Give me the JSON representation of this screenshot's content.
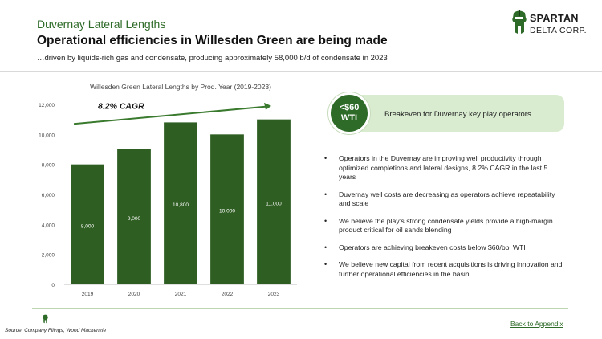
{
  "header": {
    "kicker": "Duvernay Lateral Lengths",
    "title": "Operational efficiencies in Willesden Green are being made",
    "subtitle": "…driven by liquids-rich gas and condensate, producing approximately 58,000 b/d of condensate in 2023"
  },
  "logo": {
    "line1": "SPARTAN",
    "line2": "DELTA CORP."
  },
  "chart_data": {
    "type": "bar",
    "title": "Willesden Green Lateral Lengths by Prod. Year (2019-2023)",
    "categories": [
      "2019",
      "2020",
      "2021",
      "2022",
      "2023"
    ],
    "values": [
      8000,
      9000,
      10800,
      10000,
      11000
    ],
    "data_labels": [
      "8,000",
      "9,000",
      "10,800",
      "10,000",
      "11,000"
    ],
    "ylim": [
      0,
      12000
    ],
    "yticks": [
      0,
      2000,
      4000,
      6000,
      8000,
      10000,
      12000
    ],
    "ytick_labels": [
      "0",
      "2,000",
      "4,000",
      "6,000",
      "8,000",
      "10,000",
      "12,000"
    ],
    "xlabel": "",
    "ylabel": "",
    "grid": false,
    "annotation": "8.2% CAGR",
    "bar_color": "#2e5e22",
    "arrow_color": "#3a7a2e"
  },
  "callout": {
    "badge_line1": "<$60",
    "badge_line2": "WTI",
    "text": "Breakeven for Duvernay key play operators"
  },
  "bullets": [
    "Operators in the Duvernay are improving well productivity through optimized completions and lateral designs, 8.2% CAGR in the last 5 years",
    "Duvernay well costs are decreasing as operators achieve repeatability and scale",
    "We believe the play’s strong condensate yields provide a high-margin product critical for oil sands blending",
    "Operators are achieving breakeven costs below $60/bbl WTI",
    "We believe new capital from recent acquisitions is driving innovation and further operational efficiencies in the basin"
  ],
  "footer": {
    "source": "Source: Company Filings, Wood Mackenzie",
    "back_link": "Back to Appendix"
  },
  "colors": {
    "brand_green": "#2e6b28",
    "callout_bg": "#d9ecd0"
  }
}
